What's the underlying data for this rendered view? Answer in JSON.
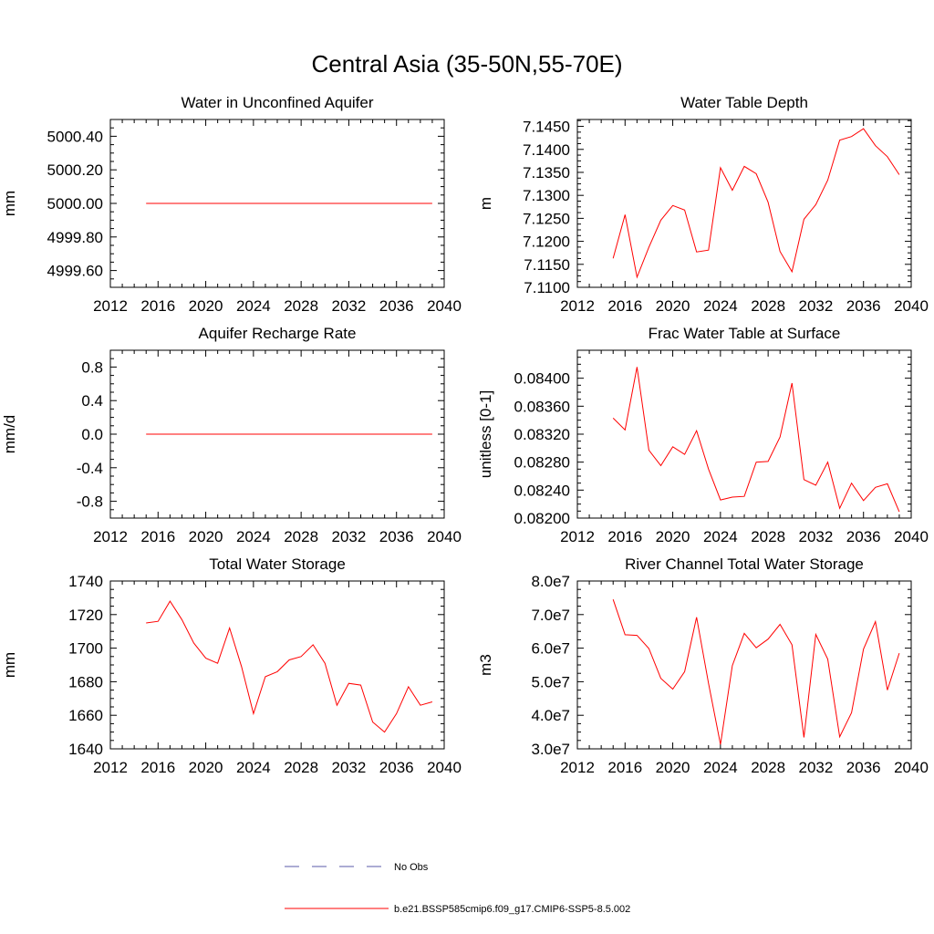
{
  "title": "Central Asia (35-50N,55-70E)",
  "legend": [
    {
      "label": "No Obs",
      "color": "#5a5aa8",
      "dash": true
    },
    {
      "label": "b.e21.BSSP585cmip6.f09_g17.CMIP6-SSP5-8.5.002",
      "color": "#ff0000",
      "dash": false
    }
  ],
  "chart_data": [
    {
      "type": "line",
      "title": "Water in Unconfined Aquifer",
      "ylabel": "mm",
      "xlim": [
        2012,
        2040
      ],
      "ylim": [
        4999.5,
        5000.5
      ],
      "xticks": [
        "2012",
        "2016",
        "2020",
        "2024",
        "2028",
        "2032",
        "2036",
        "2040"
      ],
      "yticks": [
        {
          "v": 4999.6,
          "label": "4999.60"
        },
        {
          "v": 4999.8,
          "label": "4999.80"
        },
        {
          "v": 5000.0,
          "label": "5000.00"
        },
        {
          "v": 5000.2,
          "label": "5000.20"
        },
        {
          "v": 5000.4,
          "label": "5000.40"
        }
      ],
      "x": [
        2015,
        2016,
        2017,
        2018,
        2019,
        2020,
        2021,
        2022,
        2023,
        2024,
        2025,
        2026,
        2027,
        2028,
        2029,
        2030,
        2031,
        2032,
        2033,
        2034,
        2035,
        2036,
        2037,
        2038,
        2039
      ],
      "series": [
        {
          "color": "#ff0000",
          "values": [
            5000,
            5000,
            5000,
            5000,
            5000,
            5000,
            5000,
            5000,
            5000,
            5000,
            5000,
            5000,
            5000,
            5000,
            5000,
            5000,
            5000,
            5000,
            5000,
            5000,
            5000,
            5000,
            5000,
            5000,
            5000
          ]
        }
      ]
    },
    {
      "type": "line",
      "title": "Water Table Depth",
      "ylabel": "m",
      "xlim": [
        2012,
        2040
      ],
      "ylim": [
        7.11,
        7.1465
      ],
      "xticks": [
        "2012",
        "2016",
        "2020",
        "2024",
        "2028",
        "2032",
        "2036",
        "2040"
      ],
      "yticks": [
        {
          "v": 7.11,
          "label": "7.1100"
        },
        {
          "v": 7.115,
          "label": "7.1150"
        },
        {
          "v": 7.12,
          "label": "7.1200"
        },
        {
          "v": 7.125,
          "label": "7.1250"
        },
        {
          "v": 7.13,
          "label": "7.1300"
        },
        {
          "v": 7.135,
          "label": "7.1350"
        },
        {
          "v": 7.14,
          "label": "7.1400"
        },
        {
          "v": 7.145,
          "label": "7.1450"
        }
      ],
      "x": [
        2015,
        2016,
        2017,
        2018,
        2019,
        2020,
        2021,
        2022,
        2023,
        2024,
        2025,
        2026,
        2027,
        2028,
        2029,
        2030,
        2031,
        2032,
        2033,
        2034,
        2035,
        2036,
        2037,
        2038,
        2039
      ],
      "series": [
        {
          "color": "#ff0000",
          "values": [
            7.1163,
            7.1258,
            7.1122,
            7.1187,
            7.1246,
            7.1278,
            7.1268,
            7.1177,
            7.1181,
            7.136,
            7.1311,
            7.1363,
            7.1347,
            7.1285,
            7.1178,
            7.1134,
            7.1248,
            7.128,
            7.1333,
            7.142,
            7.1428,
            7.1445,
            7.1408,
            7.1384,
            7.1345
          ]
        }
      ]
    },
    {
      "type": "line",
      "title": "Aquifer Recharge Rate",
      "ylabel": "mm/d",
      "xlim": [
        2012,
        2040
      ],
      "ylim": [
        -1.0,
        1.0
      ],
      "xticks": [
        "2012",
        "2016",
        "2020",
        "2024",
        "2028",
        "2032",
        "2036",
        "2040"
      ],
      "yticks": [
        {
          "v": -0.8,
          "label": "-0.8"
        },
        {
          "v": -0.4,
          "label": "-0.4"
        },
        {
          "v": 0.0,
          "label": "0.0"
        },
        {
          "v": 0.4,
          "label": "0.4"
        },
        {
          "v": 0.8,
          "label": "0.8"
        }
      ],
      "x": [
        2015,
        2016,
        2017,
        2018,
        2019,
        2020,
        2021,
        2022,
        2023,
        2024,
        2025,
        2026,
        2027,
        2028,
        2029,
        2030,
        2031,
        2032,
        2033,
        2034,
        2035,
        2036,
        2037,
        2038,
        2039
      ],
      "series": [
        {
          "color": "#ff0000",
          "values": [
            0,
            0,
            0,
            0,
            0,
            0,
            0,
            0,
            0,
            0,
            0,
            0,
            0,
            0,
            0,
            0,
            0,
            0,
            0,
            0,
            0,
            0,
            0,
            0,
            0
          ]
        }
      ]
    },
    {
      "type": "line",
      "title": "Frac Water Table at Surface",
      "ylabel": "unitless [0-1]",
      "xlim": [
        2012,
        2040
      ],
      "ylim": [
        0.082,
        0.0844
      ],
      "xticks": [
        "2012",
        "2016",
        "2020",
        "2024",
        "2028",
        "2032",
        "2036",
        "2040"
      ],
      "yticks": [
        {
          "v": 0.082,
          "label": "0.08200"
        },
        {
          "v": 0.0824,
          "label": "0.08240"
        },
        {
          "v": 0.0828,
          "label": "0.08280"
        },
        {
          "v": 0.0832,
          "label": "0.08320"
        },
        {
          "v": 0.0836,
          "label": "0.08360"
        },
        {
          "v": 0.084,
          "label": "0.08400"
        }
      ],
      "x": [
        2015,
        2016,
        2017,
        2018,
        2019,
        2020,
        2021,
        2022,
        2023,
        2024,
        2025,
        2026,
        2027,
        2028,
        2029,
        2030,
        2031,
        2032,
        2033,
        2034,
        2035,
        2036,
        2037,
        2038,
        2039
      ],
      "series": [
        {
          "color": "#ff0000",
          "values": [
            0.08343,
            0.08326,
            0.08416,
            0.08297,
            0.08275,
            0.08302,
            0.08291,
            0.08325,
            0.0827,
            0.08226,
            0.0823,
            0.08231,
            0.0828,
            0.08281,
            0.08316,
            0.08393,
            0.08255,
            0.08247,
            0.0828,
            0.08214,
            0.0825,
            0.08225,
            0.08244,
            0.08249,
            0.08209
          ]
        }
      ]
    },
    {
      "type": "line",
      "title": "Total Water Storage",
      "ylabel": "mm",
      "xlim": [
        2012,
        2040
      ],
      "ylim": [
        1640,
        1740
      ],
      "xticks": [
        "2012",
        "2016",
        "2020",
        "2024",
        "2028",
        "2032",
        "2036",
        "2040"
      ],
      "yticks": [
        {
          "v": 1640,
          "label": "1640"
        },
        {
          "v": 1660,
          "label": "1660"
        },
        {
          "v": 1680,
          "label": "1680"
        },
        {
          "v": 1700,
          "label": "1700"
        },
        {
          "v": 1720,
          "label": "1720"
        },
        {
          "v": 1740,
          "label": "1740"
        }
      ],
      "x": [
        2015,
        2016,
        2017,
        2018,
        2019,
        2020,
        2021,
        2022,
        2023,
        2024,
        2025,
        2026,
        2027,
        2028,
        2029,
        2030,
        2031,
        2032,
        2033,
        2034,
        2035,
        2036,
        2037,
        2038,
        2039
      ],
      "series": [
        {
          "color": "#ff0000",
          "values": [
            1715,
            1716,
            1728,
            1717,
            1703,
            1694,
            1691,
            1712,
            1689,
            1661,
            1683,
            1686,
            1693,
            1695,
            1702,
            1691,
            1666,
            1679,
            1678,
            1656,
            1650,
            1661,
            1677,
            1666,
            1668
          ]
        }
      ]
    },
    {
      "type": "line",
      "title": "River Channel Total Water Storage",
      "ylabel": "m3",
      "xlim": [
        2012,
        2040
      ],
      "ylim": [
        30000000,
        80000000
      ],
      "xticks": [
        "2012",
        "2016",
        "2020",
        "2024",
        "2028",
        "2032",
        "2036",
        "2040"
      ],
      "yticks": [
        {
          "v": 30000000,
          "label": "3.0e7"
        },
        {
          "v": 40000000,
          "label": "4.0e7"
        },
        {
          "v": 50000000,
          "label": "5.0e7"
        },
        {
          "v": 60000000,
          "label": "6.0e7"
        },
        {
          "v": 70000000,
          "label": "7.0e7"
        },
        {
          "v": 80000000,
          "label": "8.0e7"
        }
      ],
      "x": [
        2015,
        2016,
        2017,
        2018,
        2019,
        2020,
        2021,
        2022,
        2023,
        2024,
        2025,
        2026,
        2027,
        2028,
        2029,
        2030,
        2031,
        2032,
        2033,
        2034,
        2035,
        2036,
        2037,
        2038,
        2039
      ],
      "series": [
        {
          "color": "#ff0000",
          "values": [
            74500000,
            64000000,
            63800000,
            59900000,
            51000000,
            47800000,
            53000000,
            69200000,
            49500000,
            31300000,
            54800000,
            64400000,
            60100000,
            62700000,
            67100000,
            61000000,
            33400000,
            64100000,
            56700000,
            33600000,
            40800000,
            59700000,
            67900000,
            47500000,
            58500000
          ]
        }
      ]
    }
  ]
}
